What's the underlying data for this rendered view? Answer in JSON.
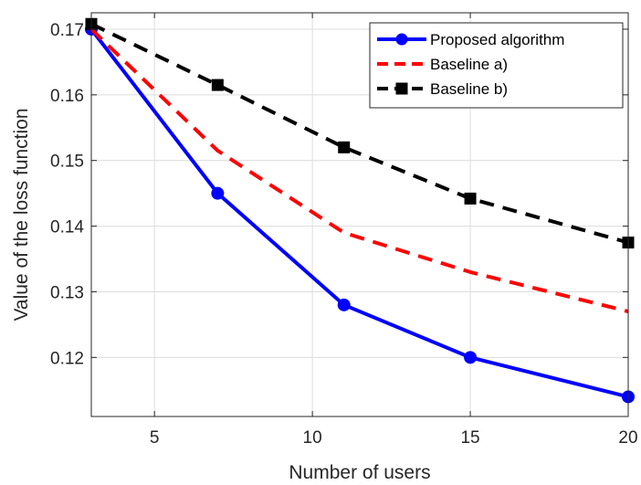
{
  "chart_data": {
    "type": "line",
    "xlabel": "Number of users",
    "ylabel": "Value of the loss function",
    "xlim": [
      3,
      20
    ],
    "ylim": [
      0.111,
      0.1725
    ],
    "xticks": [
      5,
      10,
      15,
      20
    ],
    "xtick_labels": [
      "5",
      "10",
      "15",
      "20"
    ],
    "yticks": [
      0.12,
      0.13,
      0.14,
      0.15,
      0.16,
      0.17
    ],
    "ytick_labels": [
      "0.12",
      "0.13",
      "0.14",
      "0.15",
      "0.16",
      "0.17"
    ],
    "grid": true,
    "legend_position": "top-right",
    "series": [
      {
        "name": "Proposed algorithm",
        "color": "#0000ff",
        "line_style": "solid",
        "marker": "circle",
        "x": [
          3,
          7,
          11,
          15,
          20
        ],
        "y": [
          0.17,
          0.145,
          0.128,
          0.12,
          0.114
        ]
      },
      {
        "name": "Baseline a)",
        "color": "#ff0000",
        "line_style": "dashed",
        "marker": "none",
        "x": [
          3,
          7,
          11,
          15,
          20
        ],
        "y": [
          0.17,
          0.1515,
          0.139,
          0.133,
          0.127
        ]
      },
      {
        "name": "Baseline b)",
        "color": "#000000",
        "line_style": "dashed",
        "marker": "square",
        "x": [
          3,
          7,
          11,
          15,
          20
        ],
        "y": [
          0.1708,
          0.1615,
          0.152,
          0.1442,
          0.1375
        ]
      }
    ]
  }
}
